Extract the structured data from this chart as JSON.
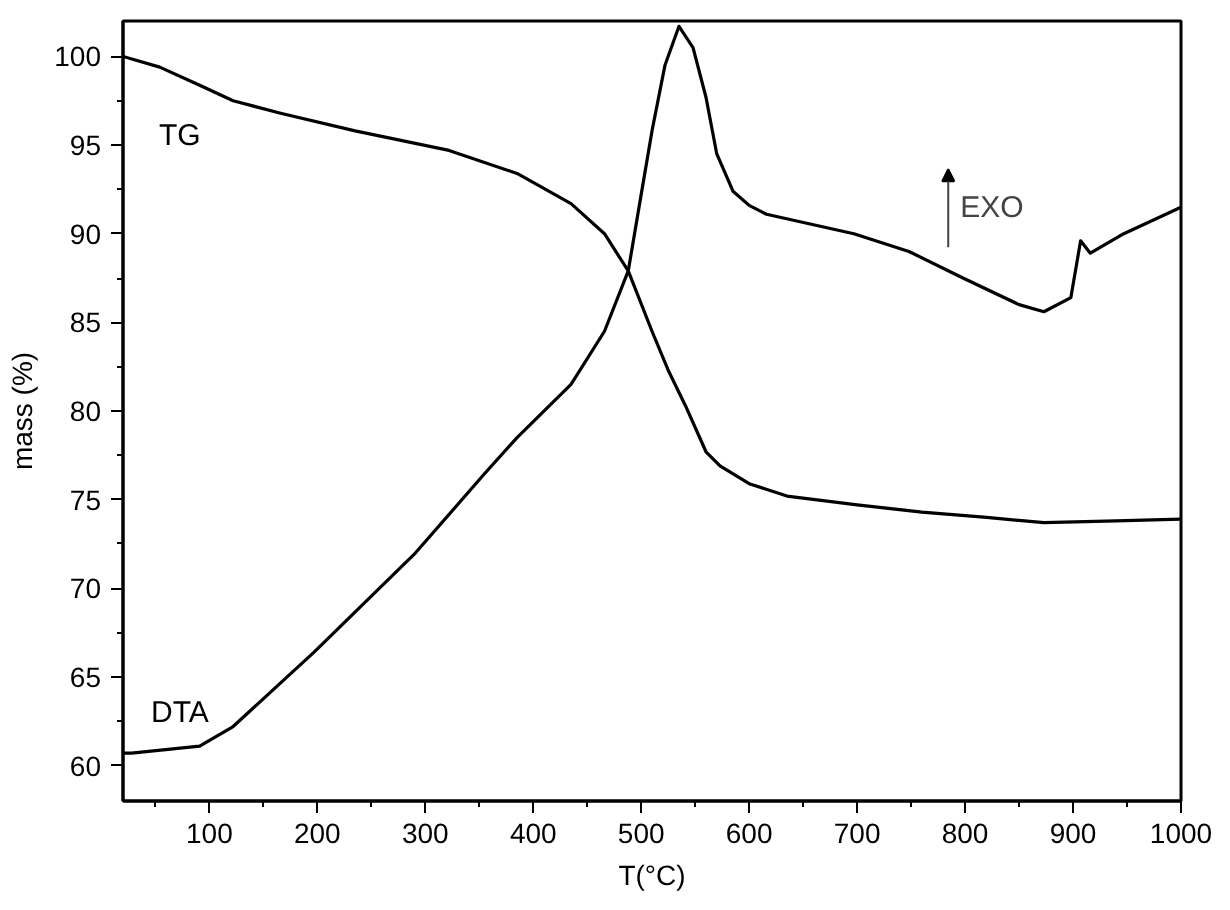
{
  "chart_data": {
    "type": "line",
    "xlabel": "T(°C)",
    "ylabel": "mass (%)",
    "xlim": [
      20,
      1000
    ],
    "ylim": [
      58,
      102
    ],
    "xticks": [
      100,
      200,
      300,
      400,
      500,
      600,
      700,
      800,
      900,
      1000
    ],
    "yticks": [
      60,
      65,
      70,
      75,
      80,
      85,
      90,
      95,
      100
    ],
    "series": [
      {
        "name": "TG",
        "color": "#000000",
        "x": [
          20,
          54,
          90,
          122,
          166,
          235,
          322,
          385,
          435,
          466,
          488,
          510,
          525,
          541,
          560,
          573,
          600,
          635,
          700,
          760,
          820,
          873,
          940,
          1000
        ],
        "values": [
          100,
          99.4,
          98.4,
          97.5,
          96.8,
          95.8,
          94.7,
          93.4,
          91.7,
          90,
          87.9,
          84.5,
          82.3,
          80.3,
          77.7,
          76.9,
          75.9,
          75.2,
          74.7,
          74.3,
          74.0,
          73.7,
          73.8,
          73.9
        ]
      },
      {
        "name": "DTA",
        "color": "#000000",
        "x": [
          20,
          28,
          91,
          122,
          197,
          291,
          354,
          385,
          435,
          466,
          488,
          498,
          510,
          522,
          535,
          548,
          560,
          570,
          585,
          600,
          616,
          697,
          748,
          798,
          850,
          873,
          898,
          907,
          916,
          947,
          1000
        ],
        "values": [
          60.7,
          60.7,
          61.1,
          62.2,
          66.4,
          72.0,
          76.4,
          78.5,
          81.5,
          84.5,
          87.9,
          91.5,
          95.8,
          99.5,
          101.7,
          100.5,
          97.7,
          94.5,
          92.4,
          91.6,
          91.1,
          90,
          89.0,
          87.5,
          86.0,
          85.6,
          86.4,
          89.6,
          88.9,
          90.0,
          91.5
        ]
      }
    ],
    "annotations": [
      "EXO"
    ]
  }
}
